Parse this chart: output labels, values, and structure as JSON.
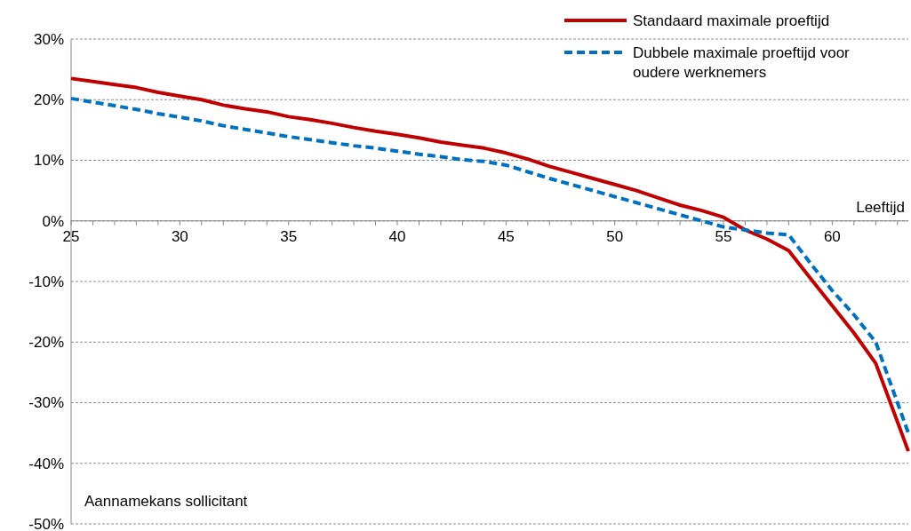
{
  "chart_data": {
    "type": "line",
    "xlabel": "Leeftijd",
    "ylabel": "Aannamekans sollicitant",
    "x": [
      25,
      26,
      27,
      28,
      29,
      30,
      31,
      32,
      33,
      34,
      35,
      36,
      37,
      38,
      39,
      40,
      41,
      42,
      43,
      44,
      45,
      46,
      47,
      48,
      49,
      50,
      51,
      52,
      53,
      54,
      55,
      56,
      57,
      58,
      59,
      60,
      61,
      62,
      63.5
    ],
    "series": [
      {
        "name": "Standaard maximale proeftijd",
        "color": "#c00000",
        "line_style": "solid",
        "values": [
          23.5,
          23,
          22.5,
          22,
          21.2,
          20.6,
          20,
          19.1,
          18.5,
          18,
          17.2,
          16.7,
          16.1,
          15.4,
          14.8,
          14.3,
          13.7,
          13,
          12.5,
          12,
          11.2,
          10.2,
          9,
          8,
          7,
          6,
          5,
          3.8,
          2.6,
          1.7,
          0.6,
          -1.5,
          -3,
          -4.9,
          -9.5,
          -14,
          -18.5,
          -23.5,
          -38
        ]
      },
      {
        "name": "Dubbele maximale proeftijd voor oudere werknemers",
        "color": "#0070c0",
        "line_style": "dashed",
        "values": [
          20.2,
          19.6,
          19,
          18.4,
          17.7,
          17.1,
          16.5,
          15.7,
          15.1,
          14.5,
          13.9,
          13.4,
          12.9,
          12.4,
          12,
          11.5,
          11,
          10.6,
          10.1,
          9.8,
          9.2,
          8.1,
          7,
          6,
          5,
          4,
          3,
          2,
          1,
          0,
          -1,
          -1.5,
          -2,
          -2.3,
          -7,
          -11.5,
          -15.5,
          -20,
          -35
        ]
      }
    ],
    "xlim": [
      25,
      63.5
    ],
    "xticks": [
      25,
      30,
      35,
      40,
      45,
      50,
      55,
      60
    ],
    "ylim": [
      -50,
      30
    ],
    "yticks": [
      {
        "value": -50,
        "label": "-50%"
      },
      {
        "value": -40,
        "label": "-40%"
      },
      {
        "value": -30,
        "label": "-30%"
      },
      {
        "value": -20,
        "label": "-20%"
      },
      {
        "value": -10,
        "label": "-10%"
      },
      {
        "value": 0,
        "label": "0%"
      },
      {
        "value": 10,
        "label": "10%"
      },
      {
        "value": 20,
        "label": "20%"
      },
      {
        "value": 30,
        "label": "30%"
      }
    ],
    "grid": "y",
    "legend": "top right"
  }
}
